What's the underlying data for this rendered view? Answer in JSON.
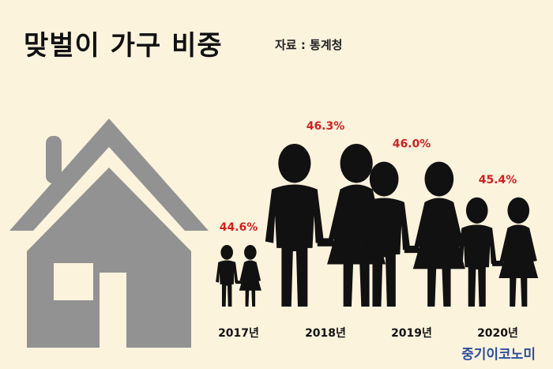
{
  "title": "맞벌이 가구 비중",
  "source": "자료 : 통계청",
  "brand": "중기이코노미",
  "colors": {
    "background": "#fcf3dd",
    "house": "#929292",
    "figure": "#111111",
    "value_label": "#d21f1f",
    "brand": "#2d4e9c"
  },
  "icons": [
    "house-icon",
    "couple-icon"
  ],
  "chart_data": {
    "type": "bar",
    "title": "맞벌이 가구 비중",
    "xlabel": "",
    "ylabel": "",
    "categories": [
      "2017년",
      "2018년",
      "2019년",
      "2020년"
    ],
    "values": [
      44.6,
      46.3,
      46.0,
      45.4
    ],
    "value_labels": [
      "44.6%",
      "46.3%",
      "46.0%",
      "45.4%"
    ],
    "unit": "%",
    "grid": false,
    "legend": "none"
  }
}
